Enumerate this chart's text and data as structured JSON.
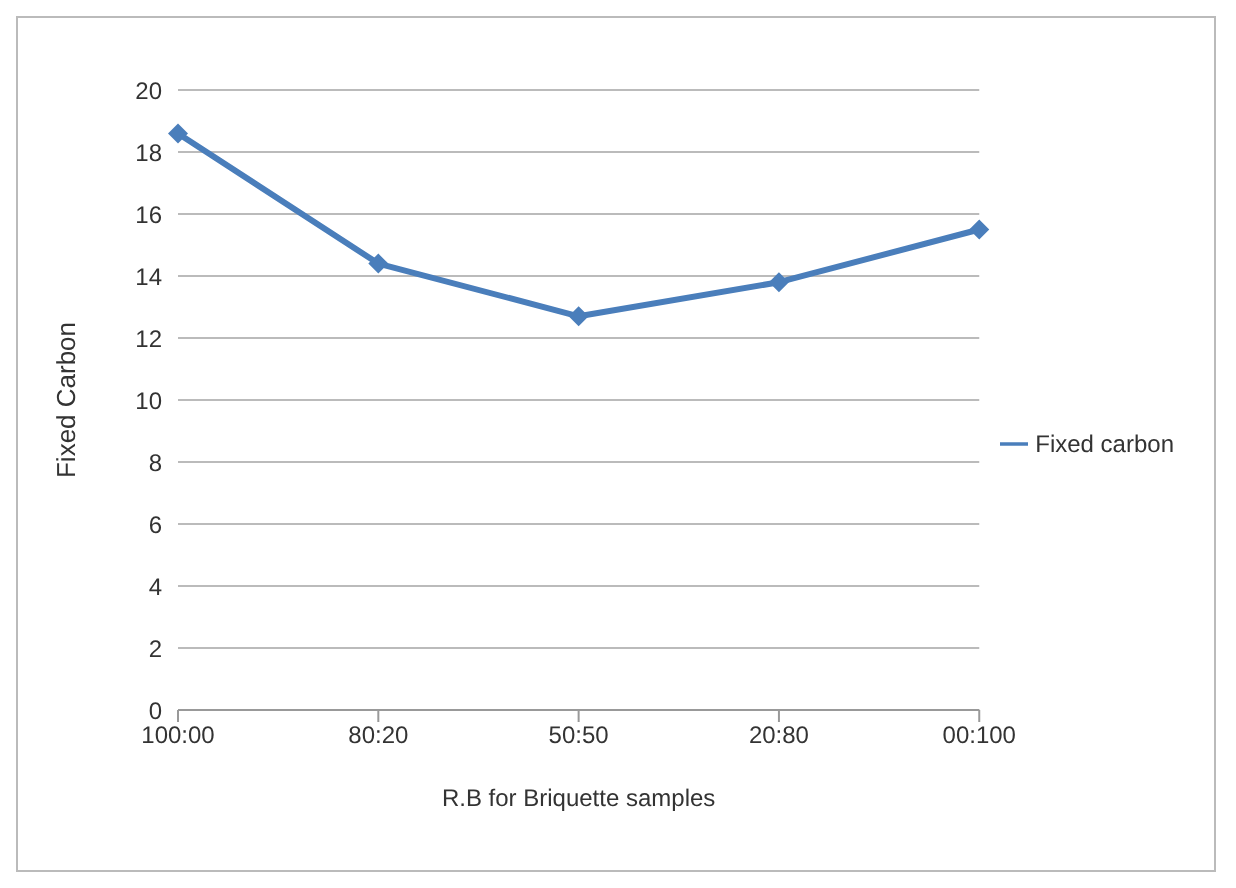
{
  "chart_data": {
    "type": "line",
    "xlabel": "R.B for Briquette samples",
    "ylabel": "Fixed Carbon",
    "categories": [
      "100:00",
      "80:20",
      "50:50",
      "20:80",
      "00:100"
    ],
    "series": [
      {
        "name": "Fixed carbon",
        "color": "#4a7ebb",
        "values": [
          18.6,
          14.4,
          12.7,
          13.8,
          15.5
        ]
      }
    ],
    "ylim": [
      0,
      20
    ],
    "yticks": [
      0,
      2,
      4,
      6,
      8,
      10,
      12,
      14,
      16,
      18,
      20
    ],
    "grid": "y",
    "legend": "right",
    "marker": "diamond"
  }
}
